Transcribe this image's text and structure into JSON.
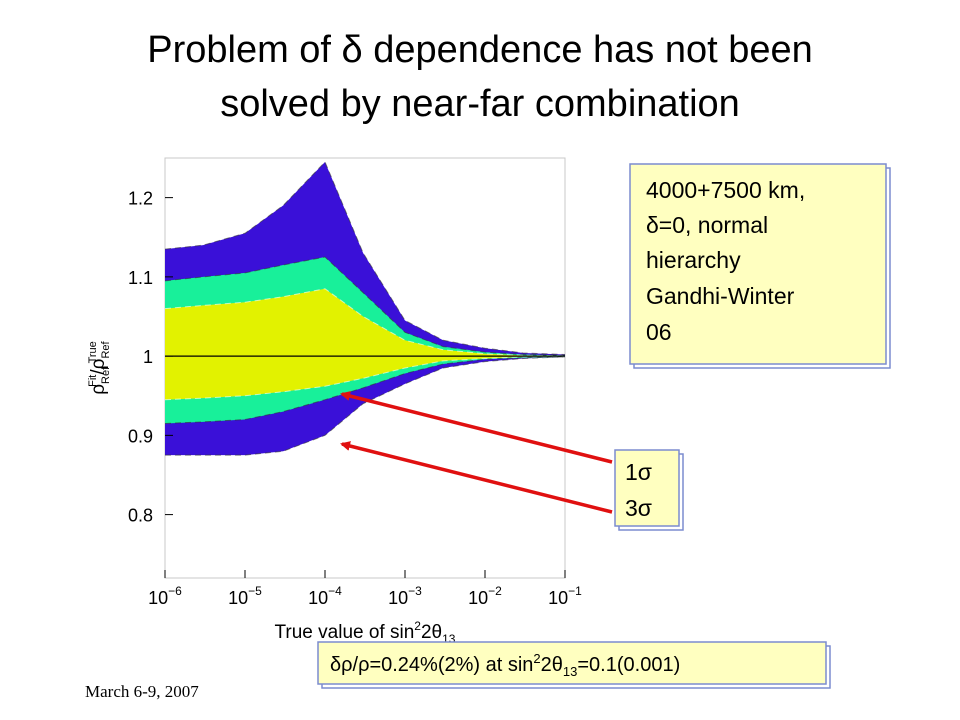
{
  "title": [
    "Problem of δ dependence has not been",
    "solved by near-far combination"
  ],
  "info_box": [
    "4000+7500 km,",
    "δ=0, normal",
    "hierarchy",
    "Gandhi-Winter",
    "06"
  ],
  "sigma_box": [
    "1σ",
    "3σ"
  ],
  "note_box": [
    "δρ/ρ=0.24%(2%) at sin",
    "2",
    "2θ",
    "13",
    "=0.1(0.001)"
  ],
  "footer": "March 6-9, 2007",
  "chart_data": {
    "type": "band",
    "x_label": [
      "True value of sin",
      "2",
      "2θ",
      "13"
    ],
    "y_label": [
      "ρ",
      "Ref",
      "Fit",
      "/ρ",
      "Ref",
      "True"
    ],
    "x_scale": "log",
    "xlim": [
      1e-06,
      0.1
    ],
    "xticks": [
      {
        "value": 1e-06,
        "label": "10",
        "exponent": "−6"
      },
      {
        "value": 1e-05,
        "label": "10",
        "exponent": "−5"
      },
      {
        "value": 0.0001,
        "label": "10",
        "exponent": "−4"
      },
      {
        "value": 0.001,
        "label": "10",
        "exponent": "−3"
      },
      {
        "value": 0.01,
        "label": "10",
        "exponent": "−2"
      },
      {
        "value": 0.1,
        "label": "10",
        "exponent": "−1"
      }
    ],
    "ylim": [
      0.72,
      1.25
    ],
    "yticks": [
      0.8,
      0.9,
      1,
      1.1,
      1.2
    ],
    "reference_line": 1,
    "x": [
      1e-06,
      3e-06,
      1e-05,
      3e-05,
      0.0001,
      0.0003,
      0.001,
      0.003,
      0.01,
      0.03,
      0.1
    ],
    "series": [
      {
        "color": "#3a10d8",
        "upper": [
          1.135,
          1.14,
          1.155,
          1.19,
          1.245,
          1.13,
          1.045,
          1.02,
          1.01,
          1.004,
          1.002
        ],
        "lower": [
          0.875,
          0.875,
          0.875,
          0.88,
          0.9,
          0.94,
          0.965,
          0.985,
          0.993,
          0.997,
          0.999
        ]
      },
      {
        "color": "#18f09a",
        "upper": [
          1.095,
          1.1,
          1.105,
          1.115,
          1.125,
          1.08,
          1.03,
          1.012,
          1.005,
          1.002,
          1.001
        ],
        "lower": [
          0.915,
          0.917,
          0.92,
          0.93,
          0.945,
          0.96,
          0.978,
          0.99,
          0.996,
          0.998,
          0.999
        ]
      },
      {
        "color": "#e2f200",
        "upper": [
          1.06,
          1.064,
          1.068,
          1.075,
          1.085,
          1.05,
          1.02,
          1.008,
          1.003,
          1.001,
          1.0005
        ],
        "lower": [
          0.945,
          0.947,
          0.95,
          0.955,
          0.962,
          0.972,
          0.985,
          0.994,
          0.997,
          0.999,
          0.9995
        ]
      }
    ]
  }
}
